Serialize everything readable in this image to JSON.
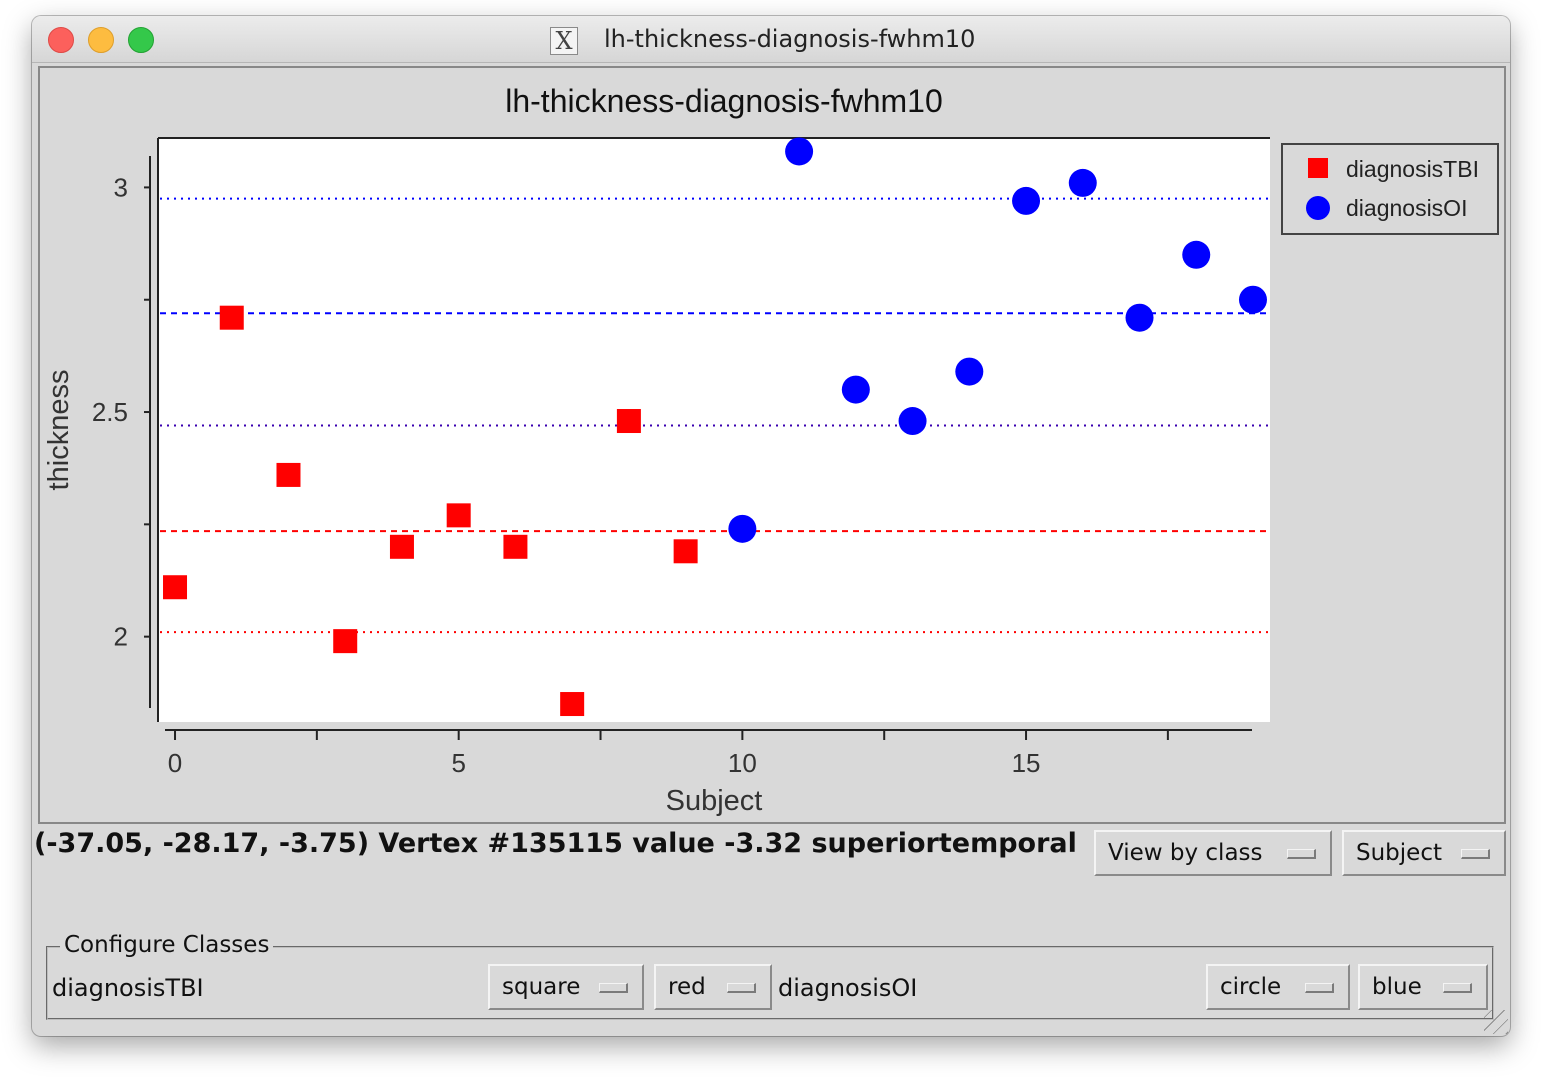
{
  "window": {
    "title": "lh-thickness-diagnosis-fwhm10",
    "x_icon": "X"
  },
  "status_text": "(-37.05, -28.17, -3.75) Vertex #135115 value -3.32 superiortemporal",
  "view_mode": {
    "selected": "View by class"
  },
  "x_axis_select": {
    "selected": "Subject"
  },
  "configure_classes": {
    "title": "Configure Classes",
    "classes": [
      {
        "name": "diagnosisTBI",
        "marker": "square",
        "color": "red"
      },
      {
        "name": "diagnosisOI",
        "marker": "circle",
        "color": "blue"
      }
    ]
  },
  "chart_data": {
    "type": "scatter",
    "title": "lh-thickness-diagnosis-fwhm10",
    "xlabel": "Subject",
    "ylabel": "thickness",
    "xlim": [
      -0.3,
      19.3
    ],
    "ylim": [
      1.81,
      3.11
    ],
    "xticks": [
      0,
      5,
      10,
      15
    ],
    "yticks": [
      2,
      2.5,
      3
    ],
    "legend_position": "right",
    "series": [
      {
        "name": "diagnosisTBI",
        "marker": "square",
        "color": "#ff0000",
        "x": [
          0,
          1,
          2,
          3,
          4,
          5,
          6,
          7,
          8,
          9
        ],
        "y": [
          2.11,
          2.71,
          2.36,
          1.99,
          2.2,
          2.27,
          2.2,
          1.85,
          2.48,
          2.19
        ],
        "mean_line": 2.235,
        "mean_line_style": "dashed",
        "std_lines": [
          2.01
        ],
        "std_line_style": "dotted"
      },
      {
        "name": "diagnosisOI",
        "marker": "circle",
        "color": "#0000ff",
        "x": [
          10,
          11,
          12,
          13,
          14,
          15,
          16,
          17,
          18,
          19
        ],
        "y": [
          2.24,
          3.08,
          2.55,
          2.48,
          2.59,
          2.97,
          3.01,
          2.71,
          2.85,
          2.75
        ],
        "mean_line": 2.72,
        "mean_line_style": "dashed",
        "std_lines": [
          2.975
        ],
        "std_line_style": "dotted"
      }
    ],
    "shared_dotted_line": 2.47,
    "shared_dotted_line_color": "#3a00b0"
  }
}
